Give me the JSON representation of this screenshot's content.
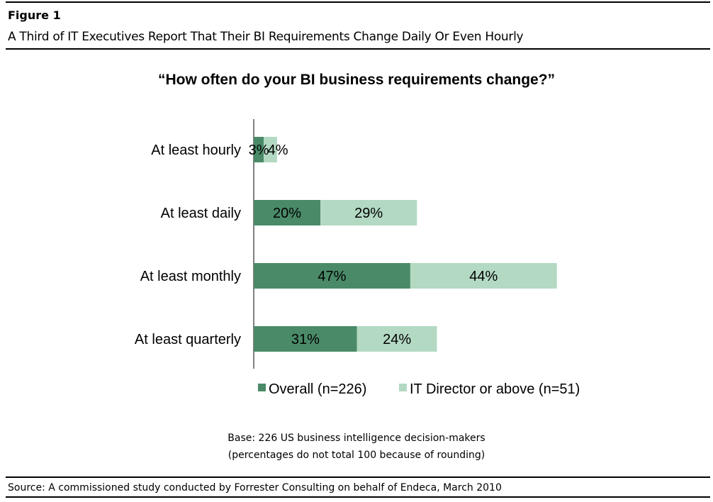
{
  "figure": {
    "label": "Figure 1",
    "subtitle": "A Third of IT Executives Report That Their BI Requirements Change Daily Or Even Hourly"
  },
  "chart_data": {
    "type": "bar",
    "orientation": "horizontal",
    "stacked": true,
    "title": "“How often do your BI business requirements change?”",
    "categories": [
      "At least hourly",
      "At least daily",
      "At least monthly",
      "At least quarterly"
    ],
    "series": [
      {
        "name": "Overall (n=226)",
        "values": [
          3,
          20,
          47,
          31
        ],
        "labels": [
          "3%",
          "20%",
          "47%",
          "31%"
        ],
        "color": "#4a8a68"
      },
      {
        "name": "IT Director or above (n=51)",
        "values": [
          4,
          29,
          44,
          24
        ],
        "labels": [
          "4%",
          "29%",
          "44%",
          "24%"
        ],
        "color": "#b3d9c3"
      }
    ],
    "xlim": [
      0,
      91
    ],
    "grid": false,
    "legend": "bottom"
  },
  "notes": {
    "base": "Base: 226 US business intelligence decision-makers",
    "rounding": "(percentages do not total 100 because of rounding)",
    "source": "Source: A commissioned study conducted by Forrester Consulting on behalf of Endeca, March 2010"
  }
}
